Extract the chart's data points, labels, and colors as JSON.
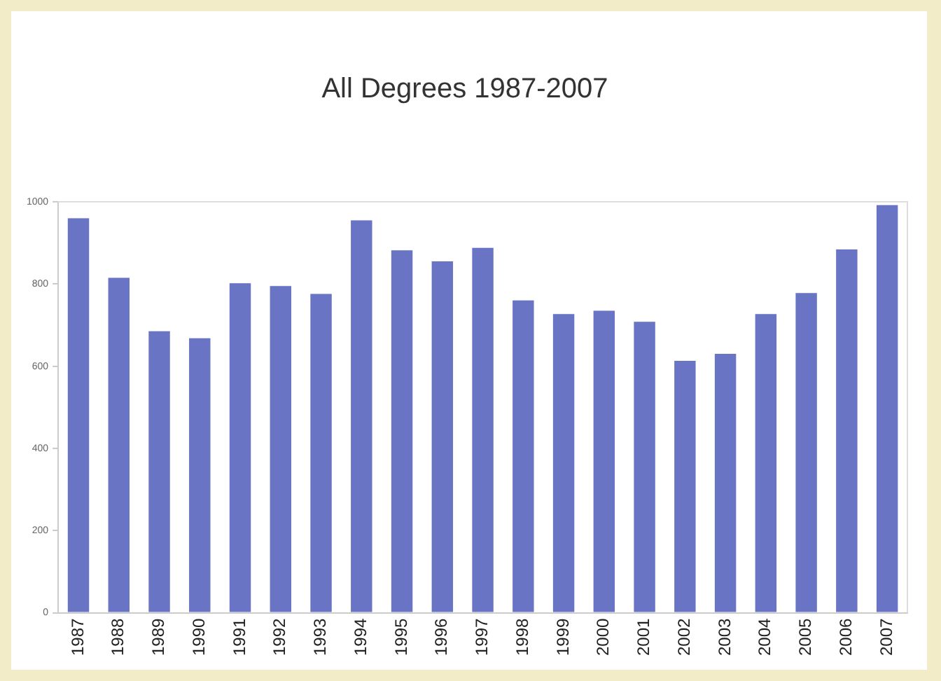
{
  "chart_data": {
    "type": "bar",
    "title": "All Degrees 1987-2007",
    "categories": [
      "1987",
      "1988",
      "1989",
      "1990",
      "1991",
      "1992",
      "1993",
      "1994",
      "1995",
      "1996",
      "1997",
      "1998",
      "1999",
      "2000",
      "2001",
      "2002",
      "2003",
      "2004",
      "2005",
      "2006",
      "2007"
    ],
    "values": [
      960,
      815,
      685,
      668,
      802,
      795,
      776,
      955,
      882,
      855,
      888,
      760,
      727,
      735,
      708,
      613,
      630,
      727,
      778,
      884,
      992
    ],
    "color": "#6a74c4",
    "ylim": [
      0,
      1000
    ],
    "yticks": [
      0,
      200,
      400,
      600,
      800,
      1000
    ],
    "grid": false,
    "legend": false
  }
}
